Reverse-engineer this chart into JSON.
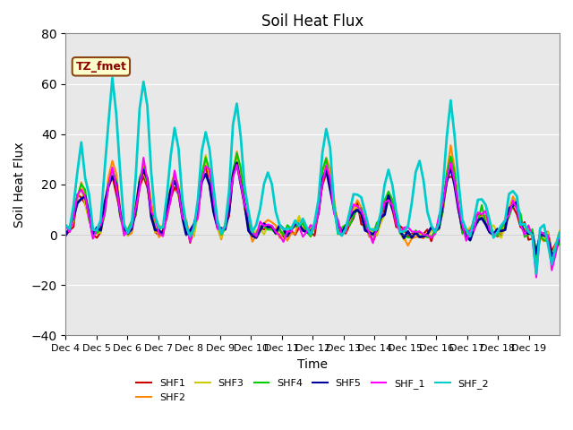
{
  "title": "Soil Heat Flux",
  "xlabel": "Time",
  "ylabel": "Soil Heat Flux",
  "ylim": [
    -40,
    80
  ],
  "yticks": [
    -40,
    -20,
    0,
    20,
    40,
    60,
    80
  ],
  "xtick_labels": [
    "Dec 4",
    "Dec 5",
    "Dec 6",
    "Dec 7",
    "Dec 8",
    "Dec 9",
    "Dec 10",
    "Dec 11",
    "Dec 12",
    "Dec 13",
    "Dec 14",
    "Dec 15",
    "Dec 16",
    "Dec 17",
    "Dec 18",
    "Dec 19"
  ],
  "series_names": [
    "SHF1",
    "SHF2",
    "SHF3",
    "SHF4",
    "SHF5",
    "SHF_1",
    "SHF_2"
  ],
  "series_colors": [
    "#cc0000",
    "#ff8800",
    "#cccc00",
    "#00cc00",
    "#000099",
    "#ff00ff",
    "#00cccc"
  ],
  "series_linewidths": [
    1.5,
    1.5,
    1.5,
    1.5,
    2.0,
    1.5,
    2.0
  ],
  "annotation_text": "TZ_fmet",
  "bg_color": "#e8e8e8",
  "fig_bg_color": "#ffffff",
  "n_days": 16,
  "pts_per_day": 8,
  "peak_days": [
    0.5,
    1.5,
    2.5,
    3.5,
    4.5,
    5.5,
    6.5,
    7.5,
    8.5,
    9.5,
    10.5,
    11.5,
    12.5,
    13.5,
    14.5
  ],
  "peak_amps_cyan": [
    35,
    63,
    63,
    43,
    43,
    52,
    27,
    5,
    39,
    20,
    25,
    29,
    52,
    16,
    20
  ],
  "peak_amps_others": [
    25,
    33,
    35,
    30,
    38,
    40,
    5,
    5,
    38,
    15,
    20,
    0,
    38,
    10,
    17
  ]
}
